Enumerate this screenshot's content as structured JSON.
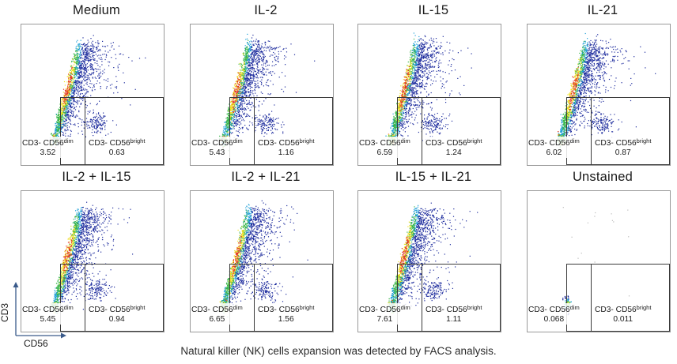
{
  "chart_data": {
    "type": "scatter",
    "description_caption": "Natural killer (NK) cells expansion was detected by FACS analysis.",
    "xlabel": "CD56",
    "ylabel": "CD3",
    "gate_labels": {
      "dim_prefix": "CD3- CD56",
      "dim_sup": "dim",
      "bright_prefix": "CD3- CD56",
      "bright_sup": "bright"
    },
    "panels": [
      {
        "title": "Medium",
        "dim": "3.52",
        "bright": "0.63"
      },
      {
        "title": "IL-2",
        "dim": "5.43",
        "bright": "1.16"
      },
      {
        "title": "IL-15",
        "dim": "6.59",
        "bright": "1.24"
      },
      {
        "title": "IL-21",
        "dim": "6.02",
        "bright": "0.87"
      },
      {
        "title": "IL-2 + IL-15",
        "dim": "5.45",
        "bright": "0.94"
      },
      {
        "title": "IL-2 + IL-21",
        "dim": "6.65",
        "bright": "1.56"
      },
      {
        "title": "IL-15 + IL-21",
        "dim": "7.61",
        "bright": "1.11"
      },
      {
        "title": "Unstained",
        "dim": "0.068",
        "bright": "0.011"
      }
    ]
  },
  "colors": {
    "low": "#1f2d9e",
    "mid": "#1fa0d8",
    "high": "#f0e020",
    "peak": "#e0301c",
    "gate": "#3a3a3a"
  }
}
